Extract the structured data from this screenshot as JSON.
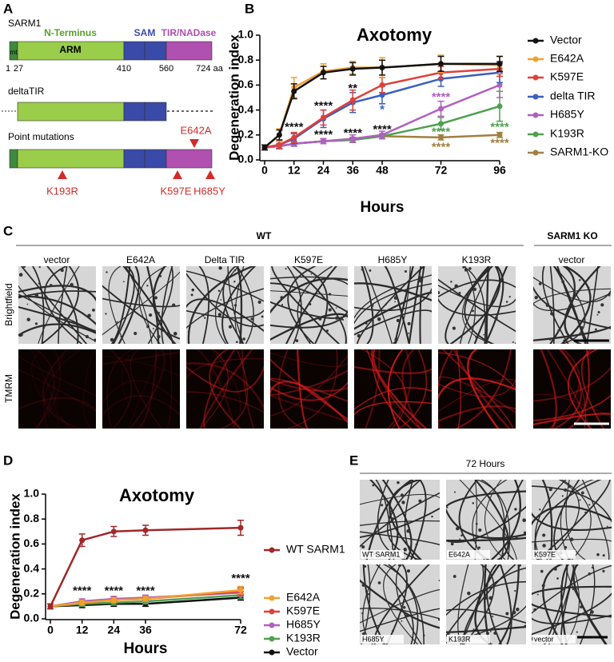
{
  "panel_labels": [
    "A",
    "B",
    "C",
    "D",
    "E"
  ],
  "diagram": {
    "title": "SARM1",
    "domains": [
      "N-Terminus",
      "SAM",
      "TIR/NADase"
    ],
    "mt": "mt",
    "arm": "ARM",
    "positions": [
      "1",
      "27",
      "410",
      "560",
      "724 aa"
    ],
    "deltatir": "deltaTIR",
    "point_mutations": "Point mutations",
    "mutations": [
      "E642A",
      "K193R",
      "K597E",
      "H685Y"
    ]
  },
  "chart_data": [
    {
      "type": "line",
      "title": "Axotomy",
      "x_label": "Hours",
      "y_label": "Degeneration index",
      "x": [
        0,
        6,
        12,
        24,
        36,
        48,
        72,
        96
      ],
      "xlim": [
        0,
        96
      ],
      "xticks": [
        0,
        12,
        24,
        36,
        48,
        72,
        96
      ],
      "ylim": [
        0,
        1
      ],
      "yticks": [
        {
          "value": 0,
          "label": "0.0"
        },
        0.2,
        0.4,
        0.6,
        0.8,
        {
          "value": 1,
          "label": "1.0"
        }
      ],
      "legend": "right",
      "series": [
        {
          "name": "Vector",
          "color": "#111111",
          "values": [
            0.1,
            0.2,
            0.55,
            0.7,
            0.73,
            0.74,
            0.77,
            0.77
          ],
          "errors": [
            0.02,
            0.04,
            0.06,
            0.05,
            0.05,
            0.06,
            0.06,
            0.06
          ]
        },
        {
          "name": "E642A",
          "color": "#f0a030",
          "values": [
            0.1,
            0.2,
            0.58,
            0.71,
            0.74,
            0.74,
            0.77,
            0.76
          ],
          "errors": [
            0.02,
            0.05,
            0.08,
            0.06,
            0.05,
            0.08,
            0.07,
            0.07
          ]
        },
        {
          "name": "K597E",
          "color": "#e0403a",
          "values": [
            0.1,
            0.12,
            0.18,
            0.34,
            0.48,
            0.6,
            0.7,
            0.73
          ],
          "errors": [
            0.02,
            0.03,
            0.04,
            0.06,
            0.08,
            0.06,
            0.05,
            0.06
          ]
        },
        {
          "name": "delta TIR",
          "color": "#3a5fc0",
          "values": [
            0.1,
            0.12,
            0.17,
            0.33,
            0.46,
            0.52,
            0.65,
            0.7
          ],
          "errors": [
            0.02,
            0.03,
            0.04,
            0.07,
            0.08,
            0.07,
            0.06,
            0.08
          ]
        },
        {
          "name": "H685Y",
          "color": "#b060c0",
          "values": [
            0.1,
            0.11,
            0.13,
            0.15,
            0.17,
            0.2,
            0.41,
            0.6
          ],
          "errors": [
            0.02,
            0.02,
            0.02,
            0.02,
            0.03,
            0.03,
            0.06,
            0.1
          ]
        },
        {
          "name": "K193R",
          "color": "#50a050",
          "values": [
            0.1,
            0.11,
            0.13,
            0.15,
            0.16,
            0.19,
            0.29,
            0.43
          ],
          "errors": [
            0.02,
            0.02,
            0.02,
            0.02,
            0.02,
            0.02,
            0.05,
            0.12
          ]
        },
        {
          "name": "SARM1-KO",
          "color": "#a08040",
          "values": [
            0.1,
            0.11,
            0.13,
            0.15,
            0.16,
            0.19,
            0.18,
            0.2
          ],
          "errors": [
            0.02,
            0.02,
            0.02,
            0.02,
            0.02,
            0.02,
            0.02,
            0.02
          ]
        }
      ],
      "annotations": [
        {
          "text": "****",
          "x": 12,
          "y": 0.26,
          "color": "#111111"
        },
        {
          "text": "****",
          "x": 24,
          "y": 0.43,
          "color": "#111111"
        },
        {
          "text": "****",
          "x": 24,
          "y": 0.2,
          "color": "#111111"
        },
        {
          "text": "**",
          "x": 36,
          "y": 0.57,
          "color": "#111111"
        },
        {
          "text": "****",
          "x": 36,
          "y": 0.21,
          "color": "#111111"
        },
        {
          "text": "*",
          "x": 48,
          "y": 0.4,
          "color": "#3a5fc0"
        },
        {
          "text": "****",
          "x": 48,
          "y": 0.24,
          "color": "#111111"
        },
        {
          "text": "****",
          "x": 72,
          "y": 0.5,
          "color": "#b060c0"
        },
        {
          "text": "****",
          "x": 72,
          "y": 0.22,
          "color": "#50a050"
        },
        {
          "text": "****",
          "x": 72,
          "y": 0.1,
          "color": "#a08040"
        },
        {
          "text": "****",
          "x": 96,
          "y": 0.26,
          "color": "#50a050"
        },
        {
          "text": "****",
          "x": 96,
          "y": 0.13,
          "color": "#a08040"
        }
      ]
    },
    {
      "type": "line",
      "title": "Axotomy",
      "x_label": "Hours",
      "y_label": "Degeneration index",
      "x": [
        0,
        12,
        24,
        36,
        72
      ],
      "xlim": [
        0,
        72
      ],
      "xticks": [
        0,
        12,
        24,
        36,
        72
      ],
      "ylim": [
        0,
        1
      ],
      "yticks": [
        {
          "value": 0,
          "label": "0.0"
        },
        0.2,
        0.4,
        0.6,
        0.8,
        {
          "value": 1,
          "label": "1.0"
        }
      ],
      "legend": "right",
      "series": [
        {
          "name": "WT SARM1",
          "color": "#a02828",
          "values": [
            0.1,
            0.63,
            0.7,
            0.71,
            0.73
          ],
          "errors": [
            0.02,
            0.05,
            0.04,
            0.04,
            0.06
          ]
        },
        {
          "name": "E642A",
          "color": "#f0a030",
          "values": [
            0.1,
            0.13,
            0.15,
            0.16,
            0.23
          ],
          "errors": [
            0.02,
            0.02,
            0.02,
            0.02,
            0.03
          ]
        },
        {
          "name": "K597E",
          "color": "#e0403a",
          "values": [
            0.1,
            0.13,
            0.15,
            0.16,
            0.22
          ],
          "errors": [
            0.02,
            0.02,
            0.02,
            0.02,
            0.03
          ]
        },
        {
          "name": "H685Y",
          "color": "#b060c0",
          "values": [
            0.1,
            0.14,
            0.16,
            0.17,
            0.21
          ],
          "errors": [
            0.02,
            0.02,
            0.02,
            0.02,
            0.03
          ]
        },
        {
          "name": "K193R",
          "color": "#50a050",
          "values": [
            0.1,
            0.12,
            0.13,
            0.14,
            0.19
          ],
          "errors": [
            0.02,
            0.02,
            0.02,
            0.02,
            0.03
          ]
        },
        {
          "name": "Vector",
          "color": "#111111",
          "values": [
            0.1,
            0.11,
            0.12,
            0.12,
            0.17
          ],
          "errors": [
            0.02,
            0.02,
            0.02,
            0.02,
            0.02
          ]
        }
      ],
      "annotations": [
        {
          "text": "****",
          "x": 12,
          "y": 0.22,
          "color": "#111111"
        },
        {
          "text": "****",
          "x": 24,
          "y": 0.22,
          "color": "#111111"
        },
        {
          "text": "****",
          "x": 36,
          "y": 0.22,
          "color": "#111111"
        },
        {
          "text": "****",
          "x": 72,
          "y": 0.32,
          "color": "#111111"
        }
      ]
    }
  ],
  "panel_c": {
    "groups": [
      "WT",
      "SARM1 KO"
    ],
    "columns": [
      "vector",
      "E642A",
      "Delta TIR",
      "K597E",
      "H685Y",
      "K193R",
      "vector"
    ],
    "rows": [
      "Brightfield",
      "TMRM"
    ]
  },
  "panel_e": {
    "title": "72 Hours",
    "labels": [
      "WT SARM1",
      "E642A",
      "K597E",
      "H685Y",
      "K193R",
      "vector"
    ]
  }
}
